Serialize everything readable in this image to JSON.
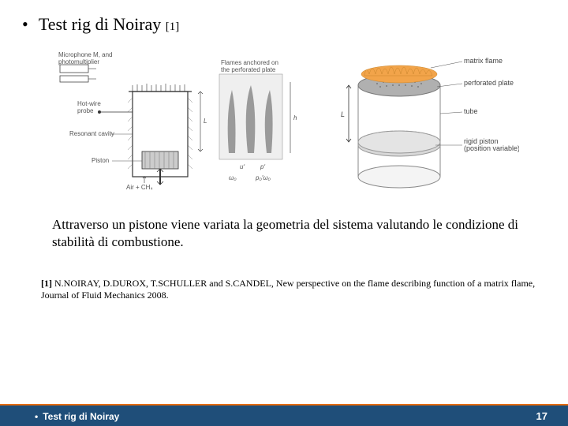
{
  "title": {
    "bullet": "•",
    "text": "Test rig di Noiray",
    "ref": "[1]"
  },
  "figLeft": {
    "lbl_mic": "Microphone M, and\nphotomultiplier",
    "lbl_flames": "Flames anchored on\nthe perforated plate",
    "lbl_hotwire": "Hot-wire\nprobe",
    "lbl_cavity": "Resonant cavity",
    "lbl_piston": "Piston",
    "lbl_air": "Air + CH₄",
    "sym_L": "L",
    "sym_h": "h",
    "sym_u": "uʹ",
    "sym_p": "pʹ",
    "sym_w0": "ω₀",
    "sym_p0": "p₀′ω₀"
  },
  "figRight": {
    "lbl_matrix": "matrix flame",
    "lbl_plate": "perforated plate",
    "lbl_tube": "tube",
    "lbl_piston": "rigid piston\n(position variable)",
    "sym_L": "L",
    "colors": {
      "plate": "#b0b0b0",
      "flame_fill": "#f2a44a",
      "flame_stroke": "#c9862d",
      "tube_stroke": "#888888",
      "piston_fill": "#d8d8d8"
    }
  },
  "body": "Attraverso un pistone viene variata la geometria del sistema valutando le condizione di stabilità di combustione.",
  "citation": {
    "lead": "[1]",
    "text": " N.NOIRAY, D.DUROX, T.SCHULLER and S.CANDEL, New perspective on the flame describing function of a matrix flame, Journal of Fluid Mechanics 2008."
  },
  "footer": {
    "bullet": "•",
    "text": "Test rig di Noiray",
    "page": "17",
    "blue": "#1f4e79",
    "orange": "#e46c0a"
  }
}
